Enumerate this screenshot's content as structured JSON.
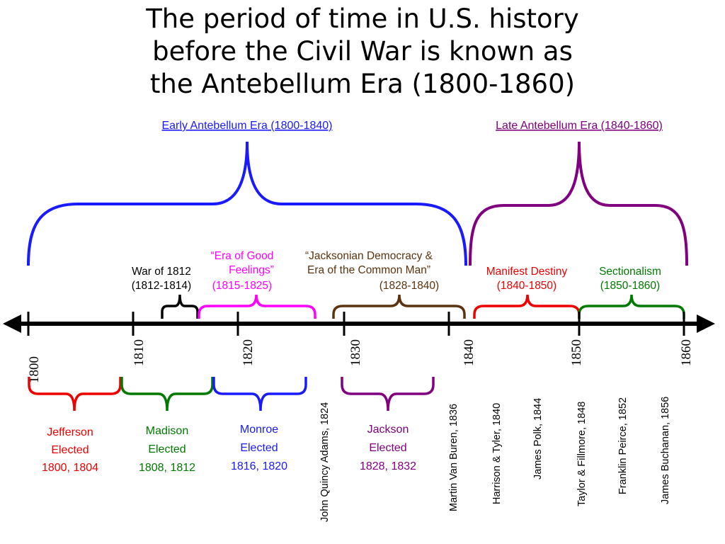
{
  "title": {
    "line1": "The period of time in U.S. history",
    "line2": "before the Civil War is known as",
    "line3": "the Antebellum Era (1800-1860)"
  },
  "colors": {
    "axis": "#000000",
    "blue": "#1a1aff",
    "purple": "#800080",
    "black": "#000000",
    "magenta": "#ff00ff",
    "brown": "#5c3310",
    "red": "#ee0000",
    "green": "#007a00"
  },
  "eras": {
    "early": "Early Antebellum Era (1800-1840)",
    "late": "Late Antebellum Era (1840-1860)"
  },
  "periods": {
    "war1812": [
      "War of 1812",
      "(1812-1814)"
    ],
    "good_feelings": [
      "“Era of Good",
      "Feelings”",
      "(1815-1825)"
    ],
    "jacksonian": [
      "“Jacksonian Democracy &",
      "Era of the Common Man”",
      "(1828-1840)"
    ],
    "manifest": [
      "Manifest Destiny",
      "(1840-1850)"
    ],
    "sectionalism": [
      "Sectionalism",
      "(1850-1860)"
    ]
  },
  "years": [
    "1800",
    "1810",
    "1820",
    "1830",
    "1840",
    "1850",
    "1860"
  ],
  "elections": {
    "jefferson": [
      "Jefferson",
      "Elected",
      "1800, 1804"
    ],
    "madison": [
      "Madison",
      "Elected",
      "1808, 1812"
    ],
    "monroe": [
      "Monroe",
      "Elected",
      "1816, 1820"
    ],
    "jackson": [
      "Jackson",
      "Elected",
      "1828, 1832"
    ]
  },
  "presidents": {
    "adams": "John Quincy Adams, 1824",
    "van_buren": "Martin Van Buren, 1836",
    "harrison_tyler": "Harrison & Tyler, 1840",
    "polk": "James Polk, 1844",
    "taylor_fillmore": "Taylor & Fillmore, 1848",
    "pierce": "Franklin Peirce, 1852",
    "buchanan": "James Buchanan, 1856"
  }
}
